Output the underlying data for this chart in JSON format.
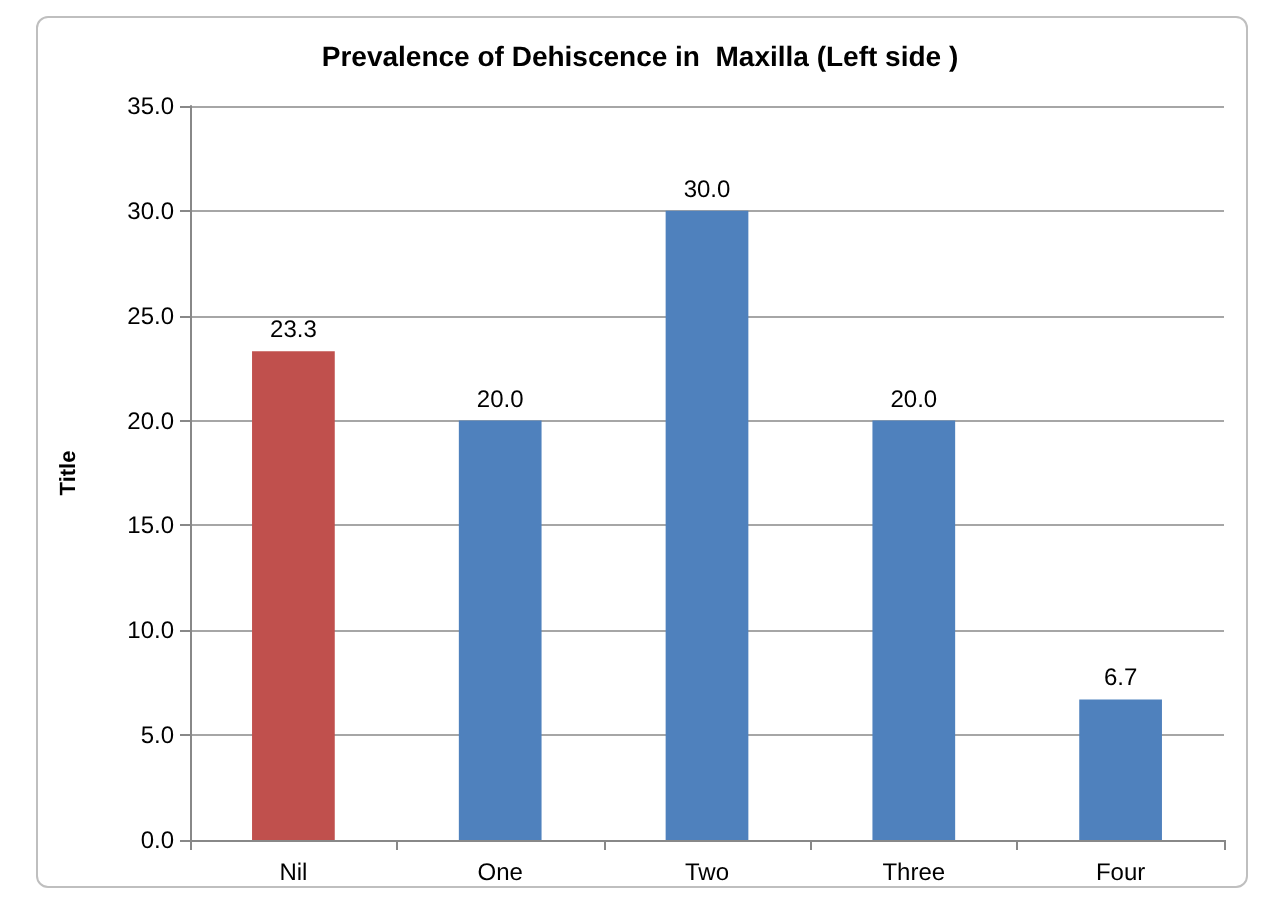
{
  "chart_data": {
    "type": "bar",
    "title": "Prevalence of Dehiscence in  Maxilla (Left side )",
    "ylabel": "Title",
    "categories": [
      "Nil",
      "One",
      "Two",
      "Three",
      "Four"
    ],
    "values": [
      23.3,
      20.0,
      30.0,
      20.0,
      6.7
    ],
    "colors": [
      "#c0504d",
      "#4f81bd",
      "#4f81bd",
      "#4f81bd",
      "#4f81bd"
    ],
    "value_labels": [
      "23.3",
      "20.0",
      "30.0",
      "20.0",
      "6.7"
    ],
    "ylim": [
      0,
      35
    ],
    "yticks": [
      {
        "value": 0,
        "label": "0.0"
      },
      {
        "value": 5,
        "label": "5.0"
      },
      {
        "value": 10,
        "label": "10.0"
      },
      {
        "value": 15,
        "label": "15.0"
      },
      {
        "value": 20,
        "label": "20.0"
      },
      {
        "value": 25,
        "label": "25.0"
      },
      {
        "value": 30,
        "label": "30.0"
      },
      {
        "value": 35,
        "label": "35.0"
      }
    ],
    "grid": "y"
  }
}
